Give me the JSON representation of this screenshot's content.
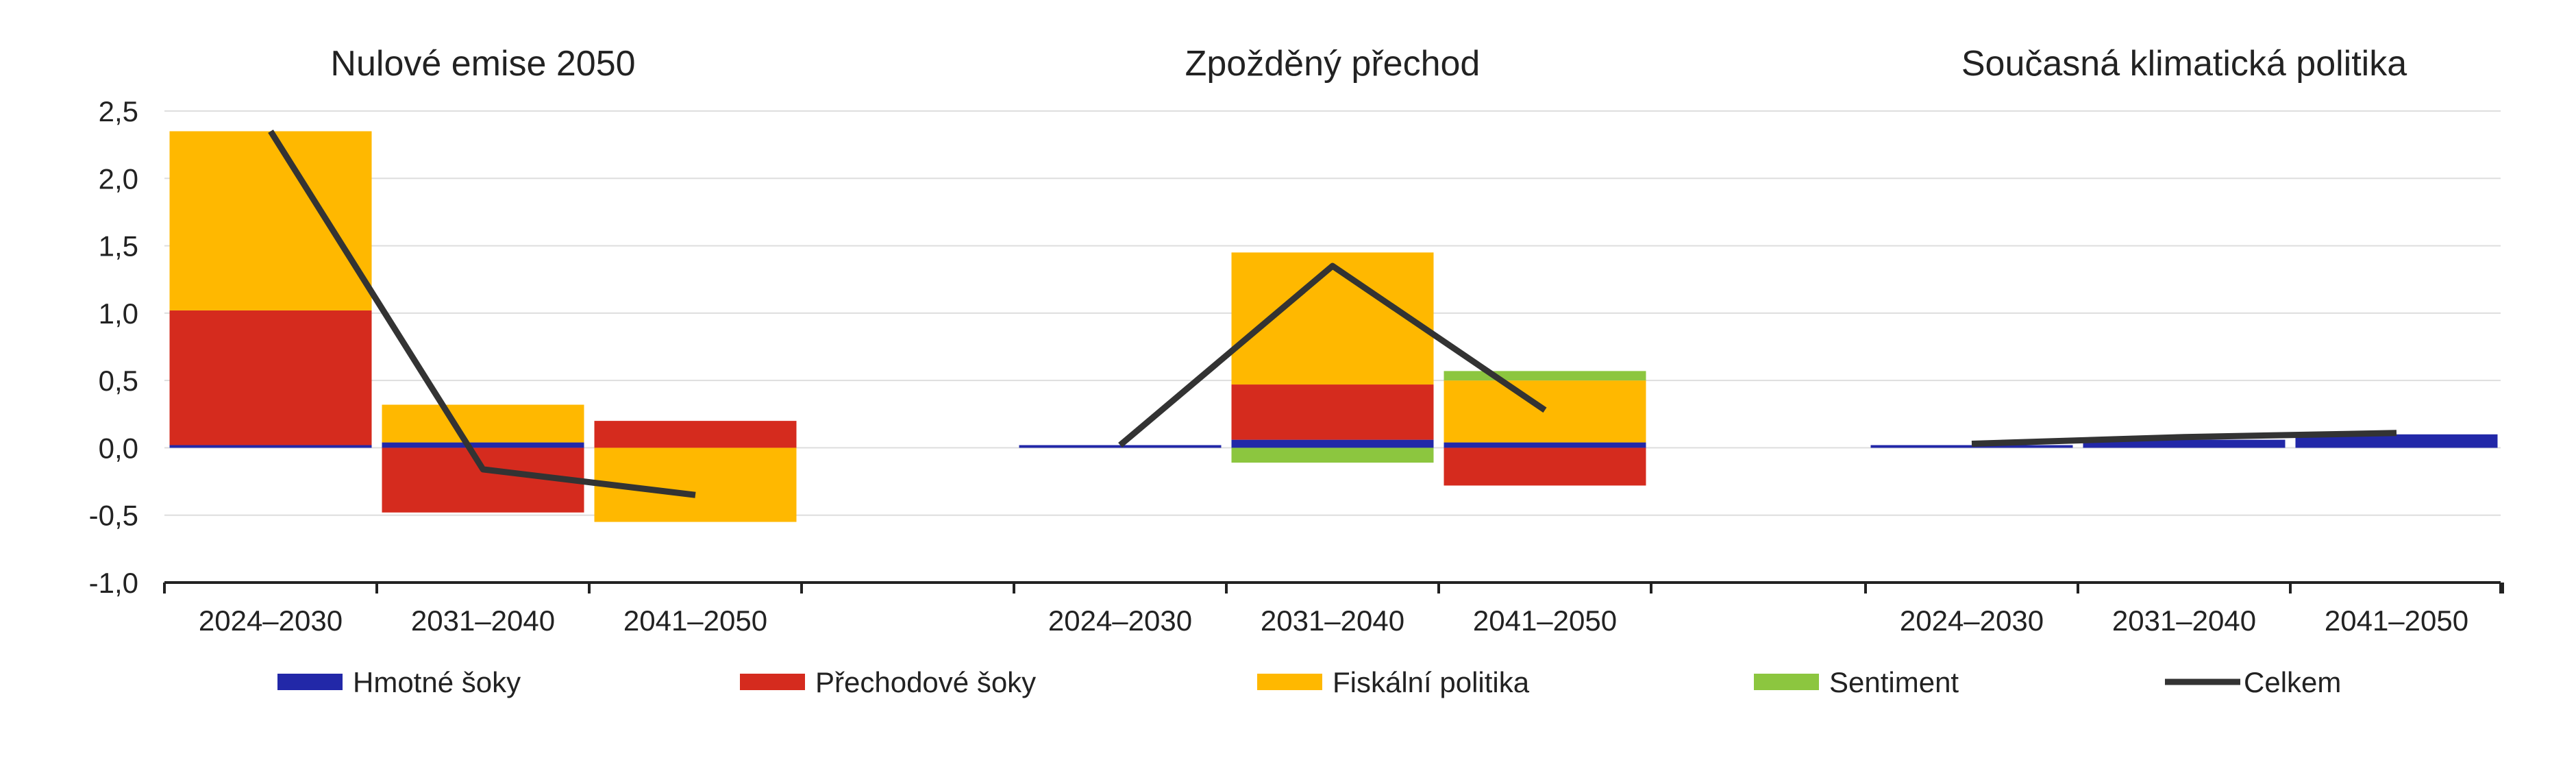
{
  "chart_data": {
    "type": "bar",
    "stacked": true,
    "ylim": [
      -1.0,
      2.5
    ],
    "yticks": [
      2.5,
      2.0,
      1.5,
      1.0,
      0.5,
      0.0,
      -0.5,
      -1.0
    ],
    "ytick_labels": [
      "2,5",
      "2,0",
      "1,5",
      "1,0",
      "0,5",
      "0,0",
      "-0,5",
      "-1,0"
    ],
    "grid": true,
    "legend_position": "bottom",
    "categories": [
      "2024–2030",
      "2031–2040",
      "2041–2050"
    ],
    "panels": [
      {
        "title": "Nulové emise 2050",
        "series": [
          {
            "name": "Hmotné šoky",
            "values": [
              0.02,
              0.04,
              0.0
            ]
          },
          {
            "name": "Přechodové šoky",
            "values": [
              1.0,
              -0.48,
              0.2
            ]
          },
          {
            "name": "Fiskální politika",
            "values": [
              1.33,
              0.28,
              -0.55
            ]
          },
          {
            "name": "Sentiment",
            "values": [
              0.0,
              0.0,
              0.0
            ]
          }
        ],
        "total": [
          2.35,
          -0.16,
          -0.35
        ]
      },
      {
        "title": "Zpožděný přechod",
        "series": [
          {
            "name": "Hmotné šoky",
            "values": [
              0.02,
              0.06,
              0.04
            ]
          },
          {
            "name": "Přechodové šoky",
            "values": [
              0.0,
              0.41,
              -0.28
            ]
          },
          {
            "name": "Fiskální politika",
            "values": [
              0.0,
              0.98,
              0.46
            ]
          },
          {
            "name": "Sentiment",
            "values": [
              0.0,
              -0.11,
              0.07
            ]
          }
        ],
        "total": [
          0.02,
          1.35,
          0.28
        ]
      },
      {
        "title": "Současná klimatická politika",
        "series": [
          {
            "name": "Hmotné šoky",
            "values": [
              0.02,
              0.06,
              0.1
            ]
          },
          {
            "name": "Přechodové šoky",
            "values": [
              0.0,
              0.0,
              0.0
            ]
          },
          {
            "name": "Fiskální politika",
            "values": [
              0.0,
              0.0,
              0.0
            ]
          },
          {
            "name": "Sentiment",
            "values": [
              0.0,
              0.0,
              0.0
            ]
          }
        ],
        "total": [
          0.03,
          0.08,
          0.11
        ]
      }
    ],
    "legend": [
      {
        "name": "Hmotné šoky",
        "type": "bar"
      },
      {
        "name": "Přechodové šoky",
        "type": "bar"
      },
      {
        "name": "Fiskální politika",
        "type": "bar"
      },
      {
        "name": "Sentiment",
        "type": "bar"
      },
      {
        "name": "Celkem",
        "type": "line"
      }
    ],
    "colors": {
      "Hmotné šoky": "#2228a8",
      "Přechodové šoky": "#d52b1e",
      "Fiskální politika": "#ffb800",
      "Sentiment": "#8cc63f",
      "Celkem": "#333333"
    }
  }
}
